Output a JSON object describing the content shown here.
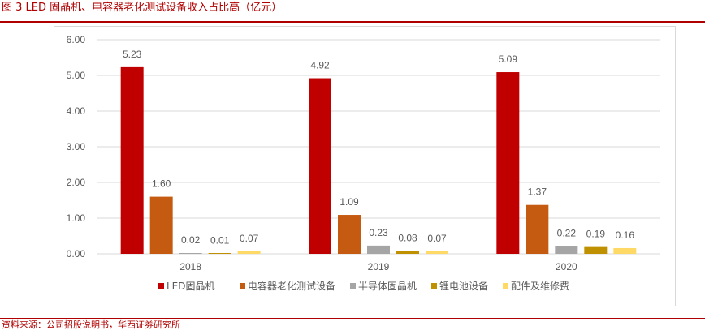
{
  "header": {
    "title": "图 3  LED 固晶机、电容器老化测试设备收入占比高（亿元）"
  },
  "footer": {
    "source": "资料来源：公司招股说明书，华西证券研究所"
  },
  "colors": {
    "title_red": "#b00000",
    "led_die_bonder": "#c00000",
    "capacitor_aging": "#c55a11",
    "semiconductor": "#a5a5a5",
    "lithium_battery": "#bf9000",
    "parts_maintenance": "#ffd966",
    "axis_text": "#595959",
    "grid": "#d9d9d9"
  },
  "chart_data": {
    "type": "bar",
    "title": "",
    "xlabel": "",
    "ylabel": "",
    "categories": [
      "2018",
      "2019",
      "2020"
    ],
    "ylim": [
      0,
      6
    ],
    "yticks": [
      "0.00",
      "1.00",
      "2.00",
      "3.00",
      "4.00",
      "5.00",
      "6.00"
    ],
    "grid": true,
    "legend_position": "bottom",
    "series": [
      {
        "name": "LED固晶机",
        "color": "#c00000",
        "values": [
          5.23,
          4.92,
          5.09
        ],
        "labels": [
          "5.23",
          "4.92",
          "5.09"
        ]
      },
      {
        "name": "电容器老化测试设备",
        "color": "#c55a11",
        "values": [
          1.6,
          1.09,
          1.37
        ],
        "labels": [
          "1.60",
          "1.09",
          "1.37"
        ]
      },
      {
        "name": "半导体固晶机",
        "color": "#a5a5a5",
        "values": [
          0.02,
          0.23,
          0.22
        ],
        "labels": [
          "0.02",
          "0.23",
          "0.22"
        ]
      },
      {
        "name": "锂电池设备",
        "color": "#bf9000",
        "values": [
          0.01,
          0.08,
          0.19
        ],
        "labels": [
          "0.01",
          "0.08",
          "0.19"
        ]
      },
      {
        "name": "配件及维修费",
        "color": "#ffd966",
        "values": [
          0.07,
          0.07,
          0.16
        ],
        "labels": [
          "0.07",
          "0.07",
          "0.16"
        ]
      }
    ]
  }
}
